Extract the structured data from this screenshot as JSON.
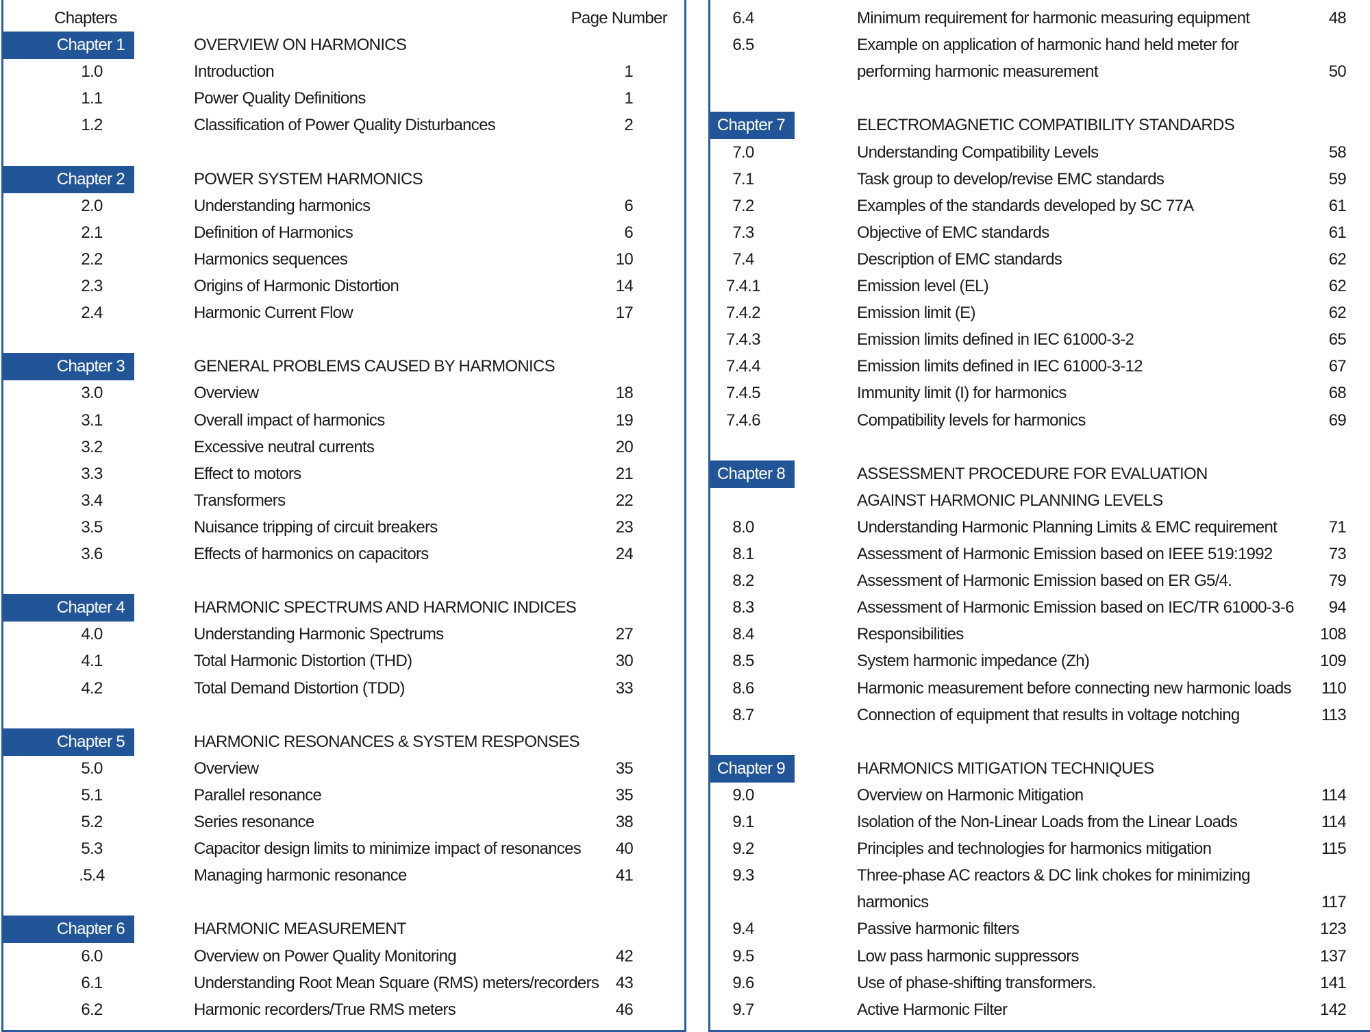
{
  "header": {
    "chapters_label": "Chapters",
    "page_number_label": "Page Number"
  },
  "colors": {
    "accent": "#225597"
  },
  "left_column": [
    {
      "type": "header"
    },
    {
      "type": "chapter",
      "label": "Chapter 1",
      "title": "OVERVIEW ON HARMONICS"
    },
    {
      "type": "section",
      "number": "1.0",
      "title": "Introduction",
      "page": "1"
    },
    {
      "type": "section",
      "number": "1.1",
      "title": "Power Quality Definitions",
      "page": "1"
    },
    {
      "type": "section",
      "number": "1.2",
      "title": "Classification of Power Quality Disturbances",
      "page": "2"
    },
    {
      "type": "spacer"
    },
    {
      "type": "chapter",
      "label": "Chapter 2",
      "title": "POWER SYSTEM HARMONICS"
    },
    {
      "type": "section",
      "number": "2.0",
      "title": "Understanding harmonics",
      "page": "6"
    },
    {
      "type": "section",
      "number": "2.1",
      "title": "Definition of Harmonics",
      "page": "6"
    },
    {
      "type": "section",
      "number": "2.2",
      "title": "Harmonics sequences",
      "page": "10"
    },
    {
      "type": "section",
      "number": "2.3",
      "title": "Origins of Harmonic Distortion",
      "page": "14"
    },
    {
      "type": "section",
      "number": "2.4",
      "title": "Harmonic Current Flow",
      "page": "17"
    },
    {
      "type": "spacer"
    },
    {
      "type": "chapter",
      "label": "Chapter 3",
      "title": "GENERAL PROBLEMS CAUSED BY HARMONICS"
    },
    {
      "type": "section",
      "number": "3.0",
      "title": "Overview",
      "page": "18"
    },
    {
      "type": "section",
      "number": "3.1",
      "title": "Overall impact of harmonics",
      "page": "19"
    },
    {
      "type": "section",
      "number": "3.2",
      "title": "Excessive neutral currents",
      "page": "20"
    },
    {
      "type": "section",
      "number": "3.3",
      "title": "Effect to motors",
      "page": "21"
    },
    {
      "type": "section",
      "number": "3.4",
      "title": "Transformers",
      "page": "22"
    },
    {
      "type": "section",
      "number": "3.5",
      "title": "Nuisance tripping of circuit breakers",
      "page": "23"
    },
    {
      "type": "section",
      "number": "3.6",
      "title": "Effects of harmonics on capacitors",
      "page": "24"
    },
    {
      "type": "spacer"
    },
    {
      "type": "chapter",
      "label": "Chapter 4",
      "title": "HARMONIC SPECTRUMS AND HARMONIC INDICES"
    },
    {
      "type": "section",
      "number": "4.0",
      "title": "Understanding Harmonic Spectrums",
      "page": "27"
    },
    {
      "type": "section",
      "number": "4.1",
      "title": "Total Harmonic Distortion (THD)",
      "page": "30"
    },
    {
      "type": "section",
      "number": "4.2",
      "title": "Total Demand Distortion (TDD)",
      "page": "33"
    },
    {
      "type": "spacer"
    },
    {
      "type": "chapter",
      "label": "Chapter 5",
      "title": "HARMONIC RESONANCES & SYSTEM RESPONSES"
    },
    {
      "type": "section",
      "number": "5.0",
      "title": "Overview",
      "page": "35"
    },
    {
      "type": "section",
      "number": "5.1",
      "title": "Parallel resonance",
      "page": "35"
    },
    {
      "type": "section",
      "number": "5.2",
      "title": "Series resonance",
      "page": "38"
    },
    {
      "type": "section",
      "number": "5.3",
      "title": "Capacitor design limits to minimize impact of resonances",
      "page": "40"
    },
    {
      "type": "section",
      "number": ".5.4",
      "title": "Managing harmonic resonance",
      "page": "41"
    },
    {
      "type": "spacer"
    },
    {
      "type": "chapter",
      "label": "Chapter 6",
      "title": "HARMONIC MEASUREMENT"
    },
    {
      "type": "section",
      "number": "6.0",
      "title": "Overview on Power Quality Monitoring",
      "page": "42"
    },
    {
      "type": "section",
      "number": "6.1",
      "title": "Understanding Root Mean Square (RMS) meters/recorders",
      "page": "43"
    },
    {
      "type": "section",
      "number": "6.2",
      "title": "Harmonic recorders/True RMS meters",
      "page": "46"
    }
  ],
  "right_column": [
    {
      "type": "section",
      "number": "6.4",
      "title": "Minimum requirement for harmonic measuring equipment",
      "page": "48"
    },
    {
      "type": "section",
      "number": "6.5",
      "title": "Example on application of harmonic hand held meter for"
    },
    {
      "type": "continuation",
      "title": "performing harmonic measurement",
      "page": "50"
    },
    {
      "type": "spacer"
    },
    {
      "type": "chapter",
      "label": "Chapter 7",
      "title": "ELECTROMAGNETIC COMPATIBILITY STANDARDS"
    },
    {
      "type": "section",
      "number": "7.0",
      "title": "Understanding Compatibility Levels",
      "page": "58"
    },
    {
      "type": "section",
      "number": "7.1",
      "title": "Task group to develop/revise EMC standards",
      "page": "59"
    },
    {
      "type": "section",
      "number": "7.2",
      "title": "Examples of the standards developed by SC 77A",
      "page": "61"
    },
    {
      "type": "section",
      "number": "7.3",
      "title": "Objective of EMC standards",
      "page": "61"
    },
    {
      "type": "section",
      "number": "7.4",
      "title": "Description of EMC standards",
      "page": "62"
    },
    {
      "type": "section",
      "number": "7.4.1",
      "title": "Emission level (EL)",
      "page": "62"
    },
    {
      "type": "section",
      "number": "7.4.2",
      "title": "Emission limit (E)",
      "page": "62"
    },
    {
      "type": "section",
      "number": "7.4.3",
      "title": "Emission limits defined in IEC 61000-3-2",
      "page": "65"
    },
    {
      "type": "section",
      "number": "7.4.4",
      "title": "Emission limits defined in IEC 61000-3-12",
      "page": "67"
    },
    {
      "type": "section",
      "number": "7.4.5",
      "title": "Immunity limit (I) for harmonics",
      "page": "68"
    },
    {
      "type": "section",
      "number": "7.4.6",
      "title": "Compatibility levels for harmonics",
      "page": "69"
    },
    {
      "type": "spacer"
    },
    {
      "type": "chapter",
      "label": "Chapter 8",
      "title": "ASSESSMENT PROCEDURE FOR EVALUATION"
    },
    {
      "type": "continuation",
      "title": "AGAINST HARMONIC PLANNING LEVELS"
    },
    {
      "type": "section",
      "number": "8.0",
      "title": "Understanding Harmonic Planning Limits & EMC requirement",
      "page": "71"
    },
    {
      "type": "section",
      "number": "8.1",
      "title": "Assessment of Harmonic Emission based on IEEE 519:1992",
      "page": "73"
    },
    {
      "type": "section",
      "number": "8.2",
      "title": "Assessment of Harmonic Emission based on ER G5/4.",
      "page": "79"
    },
    {
      "type": "section",
      "number": "8.3",
      "title": "Assessment of Harmonic Emission based on IEC/TR 61000-3-6",
      "page": "94"
    },
    {
      "type": "section",
      "number": "8.4",
      "title": "Responsibilities",
      "page": "108"
    },
    {
      "type": "section",
      "number": "8.5",
      "title": "System harmonic impedance (Zh)",
      "page": "109"
    },
    {
      "type": "section",
      "number": "8.6",
      "title": "Harmonic measurement before connecting new harmonic loads",
      "page": "110"
    },
    {
      "type": "section",
      "number": "8.7",
      "title": "Connection of equipment that results in voltage notching",
      "page": "113"
    },
    {
      "type": "spacer"
    },
    {
      "type": "chapter",
      "label": "Chapter 9",
      "title": "HARMONICS MITIGATION TECHNIQUES"
    },
    {
      "type": "section",
      "number": "9.0",
      "title": "Overview on Harmonic Mitigation",
      "page": "114"
    },
    {
      "type": "section",
      "number": "9.1",
      "title": "Isolation of the Non-Linear Loads from the Linear Loads",
      "page": "114"
    },
    {
      "type": "section",
      "number": "9.2",
      "title": "Principles and technologies for harmonics mitigation",
      "page": "115"
    },
    {
      "type": "section",
      "number": "9.3",
      "title": "Three-phase AC reactors & DC link chokes for minimizing"
    },
    {
      "type": "continuation",
      "title": " harmonics",
      "page": "117"
    },
    {
      "type": "section",
      "number": "9.4",
      "title": "Passive harmonic filters",
      "page": "123"
    },
    {
      "type": "section",
      "number": "9.5",
      "title": "Low pass harmonic suppressors",
      "page": "137"
    },
    {
      "type": "section",
      "number": "9.6",
      "title": "Use of phase-shifting transformers.",
      "page": "141"
    },
    {
      "type": "section",
      "number": "9.7",
      "title": "Active Harmonic Filter",
      "page": "142"
    }
  ]
}
